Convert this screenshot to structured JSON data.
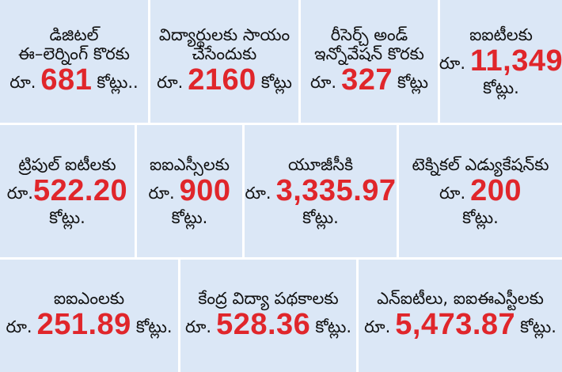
{
  "colors": {
    "panel": "#dbe7f6",
    "amount": "#e0262b",
    "text": "#111111"
  },
  "row1": [
    {
      "title1": "డిజిటల్",
      "title2": "ఈ–లెర్నింగ్ కొరకు",
      "prefix": "రూ.",
      "amount": "681",
      "suffix": "కోట్లు.."
    },
    {
      "title1": "విద్యార్థులకు సాయం",
      "title2": "చేసేందుకు",
      "prefix": "రూ.",
      "amount": "2160",
      "suffix": "కోట్లు"
    },
    {
      "title1": "రీసెర్చ్ అండ్",
      "title2": "ఇన్నోవేషన్ కొరకు",
      "prefix": "రూ.",
      "amount": "327",
      "suffix": "కోట్లు"
    },
    {
      "title1": "ఐఐటీలకు",
      "prefix": "రూ.",
      "amount": "11,349",
      "suffix": "కోట్లు."
    }
  ],
  "row2": [
    {
      "title1": "ట్రిపుల్ ఐటీలకు",
      "prefix": "రూ.",
      "amount": "522.20",
      "suffix": "కోట్లు."
    },
    {
      "title1": "ఐఐఎస్సీలకు",
      "prefix": "రూ.",
      "amount": "900",
      "suffix": "కోట్లు."
    },
    {
      "title1": "యూజీసీకి",
      "prefix": "రూ.",
      "amount": "3,335.97",
      "suffix": "కోట్లు."
    },
    {
      "title1": "టెక్నికల్ ఎడ్యుకేషన్‌కు",
      "prefix": "రూ.",
      "amount": "200",
      "suffix": "కోట్లు."
    }
  ],
  "row3": [
    {
      "title1": "ఐఐఎంలకు",
      "prefix": "రూ.",
      "amount": "251.89",
      "suffix": "కోట్లు."
    },
    {
      "title1": "కేంద్ర విద్యా పథకాలకు",
      "prefix": "రూ.",
      "amount": "528.36",
      "suffix": "కోట్లు."
    },
    {
      "title1": "ఎన్ఐటీలు, ఐఐఈఎస్టీలకు",
      "prefix": "రూ.",
      "amount": "5,473.87",
      "suffix": "కోట్లు."
    }
  ]
}
